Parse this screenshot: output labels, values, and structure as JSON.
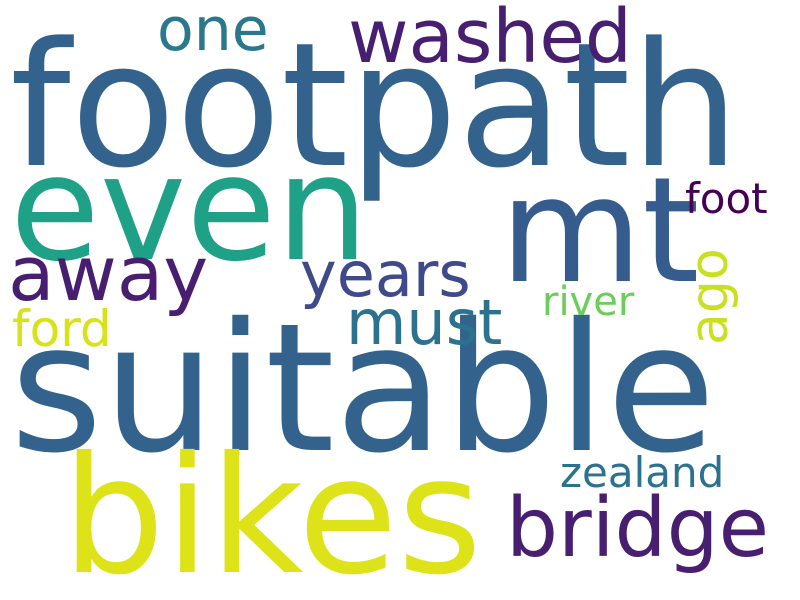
{
  "words": [
    {
      "id": "footpath",
      "text": "footpath",
      "color": "#33638d"
    },
    {
      "id": "suitable",
      "text": "suitable",
      "color": "#33638d"
    },
    {
      "id": "bikes",
      "text": "bikes",
      "color": "#dde318"
    },
    {
      "id": "even",
      "text": "even",
      "color": "#1fa187"
    },
    {
      "id": "mt",
      "text": "mt",
      "color": "#365c8d"
    },
    {
      "id": "washed",
      "text": "washed",
      "color": "#481f70"
    },
    {
      "id": "bridge",
      "text": "bridge",
      "color": "#481f70"
    },
    {
      "id": "away",
      "text": "away",
      "color": "#481f70"
    },
    {
      "id": "years",
      "text": "years",
      "color": "#3e4a89"
    },
    {
      "id": "one",
      "text": "one",
      "color": "#2a788e"
    },
    {
      "id": "must",
      "text": "must",
      "color": "#2c728e"
    },
    {
      "id": "ford",
      "text": "ford",
      "color": "#d8e219"
    },
    {
      "id": "foot",
      "text": "foot",
      "color": "#440154"
    },
    {
      "id": "ago",
      "text": "ago",
      "color": "#c8e020"
    },
    {
      "id": "river",
      "text": "river",
      "color": "#6ccd5a"
    },
    {
      "id": "zealand",
      "text": "zealand",
      "color": "#2c728e"
    }
  ]
}
